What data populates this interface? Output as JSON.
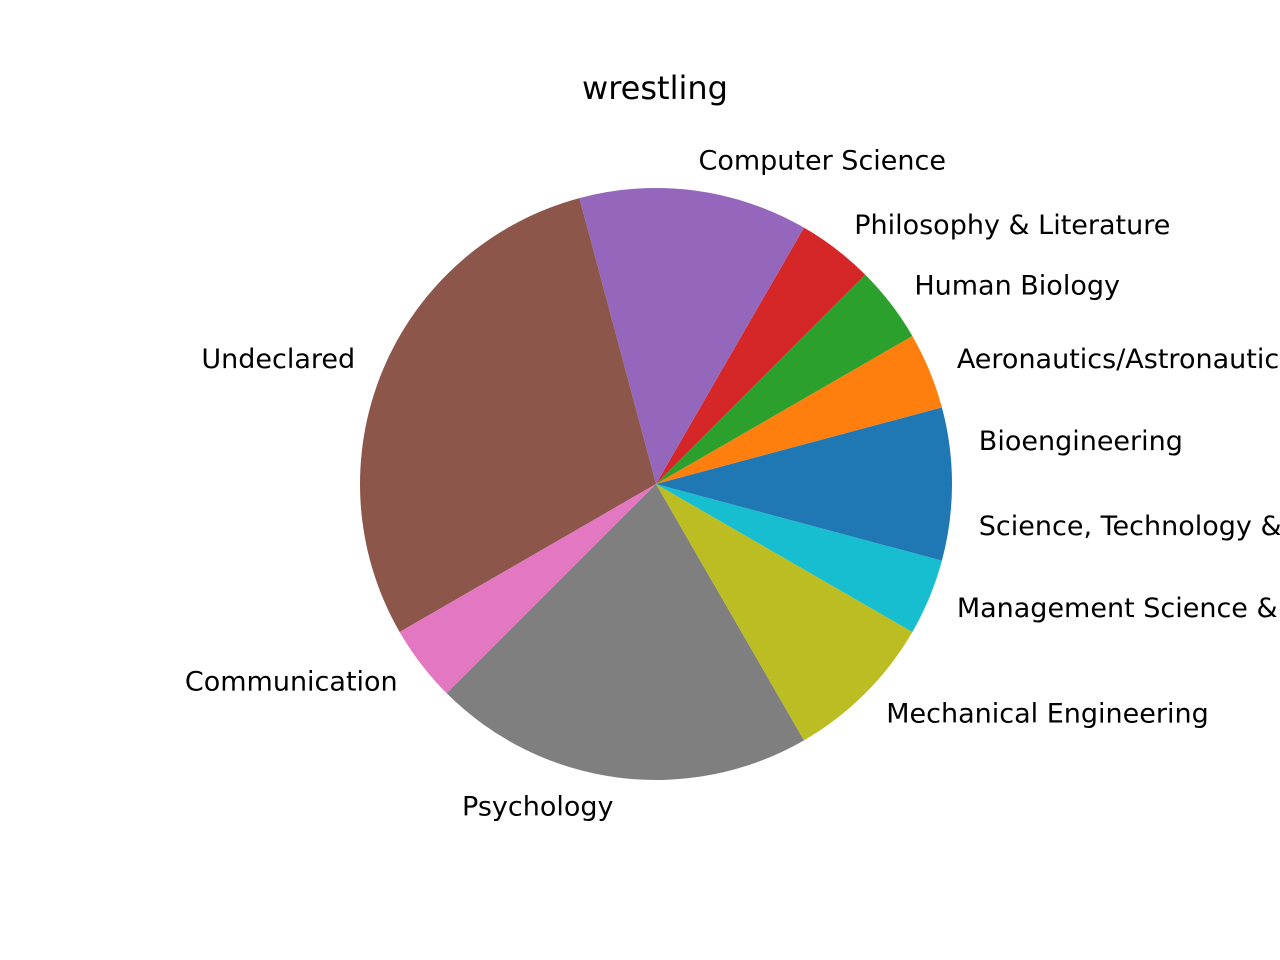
{
  "chart_data": {
    "type": "pie",
    "title": "wrestling",
    "start_angle_deg": 0,
    "direction": "counterclockwise",
    "slices": [
      {
        "label": "Bioengineering",
        "value": 1,
        "color": "#1f77b4"
      },
      {
        "label": "Aeronautics/Astronautics",
        "value": 1,
        "color": "#ff7f0e"
      },
      {
        "label": "Human Biology",
        "value": 1,
        "color": "#2ca02c"
      },
      {
        "label": "Philosophy & Literature",
        "value": 1,
        "color": "#d62728"
      },
      {
        "label": "Computer Science",
        "value": 3,
        "color": "#9467bd"
      },
      {
        "label": "Undeclared",
        "value": 7,
        "color": "#8c564b"
      },
      {
        "label": "Communication",
        "value": 1,
        "color": "#e377c2"
      },
      {
        "label": "Psychology",
        "value": 5,
        "color": "#7f7f7f"
      },
      {
        "label": "Mechanical Engineering",
        "value": 2,
        "color": "#bcbd22"
      },
      {
        "label": "Management Science & Engineering",
        "value": 1,
        "color": "#17becf"
      },
      {
        "label": "Science, Technology & Society",
        "value": 1,
        "color": "#1f77b4"
      }
    ]
  }
}
